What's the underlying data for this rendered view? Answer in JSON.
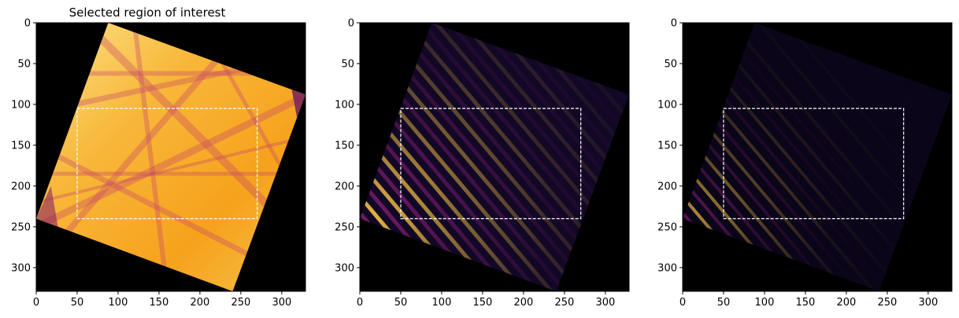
{
  "figure": {
    "panels": [
      {
        "title": "Selected region of interest",
        "xticks": [
          "0",
          "50",
          "100",
          "150",
          "200",
          "250",
          "300"
        ],
        "yticks": [
          "0",
          "50",
          "100",
          "150",
          "200",
          "250",
          "300"
        ],
        "xlim": [
          0,
          329
        ],
        "ylim": [
          329,
          0
        ],
        "roi": {
          "x0": 50,
          "y0": 105,
          "x1": 270,
          "y1": 240
        },
        "colormap": "inferno",
        "style": "kikuchi-pattern"
      },
      {
        "title": "",
        "xticks": [
          "0",
          "50",
          "100",
          "150",
          "200",
          "250",
          "300"
        ],
        "yticks": [
          "0",
          "50",
          "100",
          "150",
          "200",
          "250",
          "300"
        ],
        "xlim": [
          0,
          329
        ],
        "ylim": [
          329,
          0
        ],
        "roi": {
          "x0": 50,
          "y0": 105,
          "x1": 270,
          "y1": 240
        },
        "colormap": "inferno",
        "style": "stripes-strong"
      },
      {
        "title": "",
        "xticks": [
          "0",
          "50",
          "100",
          "150",
          "200",
          "250",
          "300"
        ],
        "yticks": [
          "0",
          "50",
          "100",
          "150",
          "200",
          "250",
          "300"
        ],
        "xlim": [
          0,
          329
        ],
        "ylim": [
          329,
          0
        ],
        "roi": {
          "x0": 50,
          "y0": 105,
          "x1": 270,
          "y1": 240
        },
        "colormap": "inferno",
        "style": "stripes-faint"
      }
    ],
    "colors": {
      "background": "#000000",
      "roi_stroke": "#ffffff",
      "kikuchi_base": "#f7a51c",
      "kikuchi_light": "#fbe082",
      "stripe_dark": "#1a0b40",
      "stripe_mid": "#7a1d6d",
      "stripe_bright": "#f9c744"
    }
  }
}
